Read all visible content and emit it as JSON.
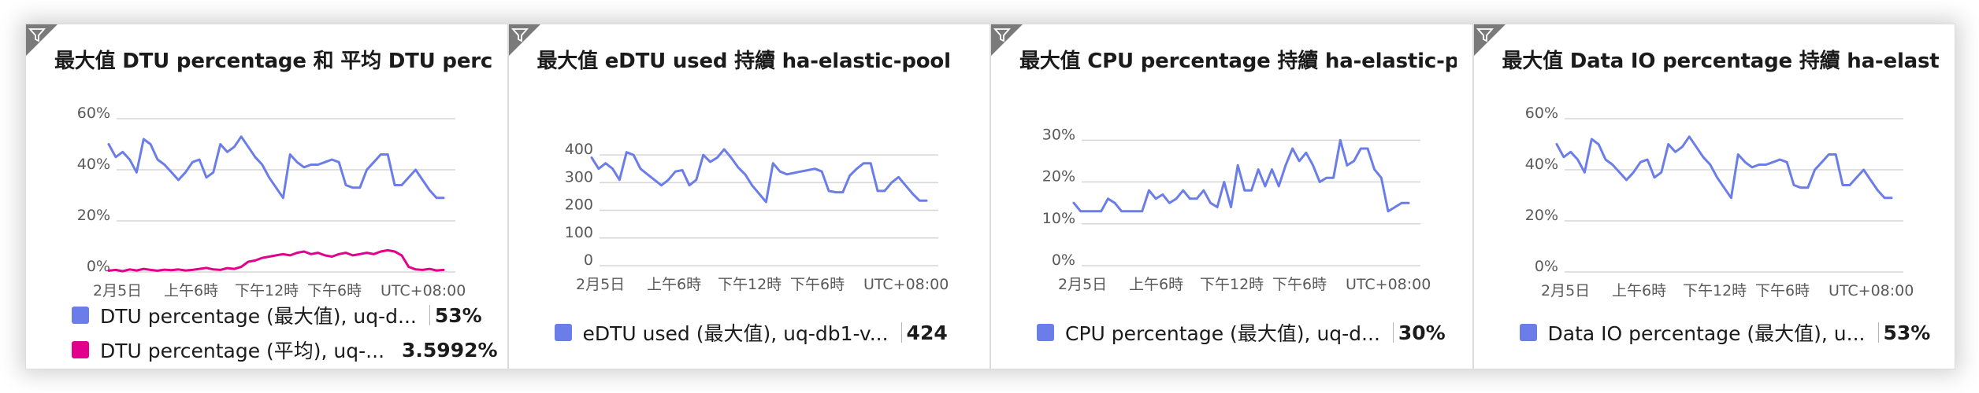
{
  "tiles": [
    {
      "title": "最大值 DTU percentage 和 平均 DTU percen...",
      "legend": [
        {
          "label": "DTU percentage (最大值), uq-d...",
          "value": "53%",
          "color": "#6b7de8"
        },
        {
          "label": "DTU percentage (平均), uq-...",
          "value": "3.5992%",
          "color": "#e3008c"
        }
      ]
    },
    {
      "title": "最大值 eDTU used 持續 ha-elastic-pool",
      "legend": [
        {
          "label": "eDTU used (最大值), uq-db1-v...",
          "value": "424",
          "color": "#6b7de8"
        }
      ]
    },
    {
      "title": "最大值 CPU percentage 持續 ha-elastic-pool",
      "legend": [
        {
          "label": "CPU percentage (最大值), uq-d...",
          "value": "30%",
          "color": "#6b7de8"
        }
      ]
    },
    {
      "title": "最大值 Data IO percentage 持續 ha-elastic-...",
      "legend": [
        {
          "label": "Data IO percentage (最大值), u...",
          "value": "53%",
          "color": "#6b7de8"
        }
      ]
    }
  ],
  "chart_data": [
    {
      "type": "line",
      "x_tick_labels": [
        "2月5日",
        "上午6時",
        "下午12時",
        "下午6時",
        "UTC+08:00"
      ],
      "y_tick_labels": [
        "0%",
        "20%",
        "40%",
        "60%"
      ],
      "ylim": [
        0,
        60
      ],
      "grid": true,
      "series": [
        {
          "name": "DTU percentage (最大值), uq-d...",
          "color": "#6b7de8",
          "values": [
            50,
            45,
            47,
            44,
            39,
            52,
            50,
            44,
            42,
            39,
            36,
            39,
            43,
            44,
            37,
            39,
            50,
            47,
            49,
            53,
            49,
            45,
            42,
            37,
            33,
            29,
            46,
            43,
            41,
            42,
            42,
            43,
            44,
            43,
            34,
            33,
            33,
            40,
            43,
            46,
            46,
            34,
            34,
            37,
            40,
            36,
            32,
            29,
            29
          ]
        },
        {
          "name": "DTU percentage (平均), uq-...",
          "color": "#e3008c",
          "values": [
            0.5,
            0.8,
            0.3,
            1.0,
            0.6,
            1.2,
            0.8,
            0.5,
            0.9,
            0.7,
            1.0,
            0.6,
            0.8,
            1.2,
            1.6,
            1.0,
            0.8,
            1.5,
            1.2,
            2.0,
            4.0,
            4.5,
            5.5,
            6.0,
            6.5,
            7.0,
            6.5,
            7.5,
            8.0,
            7.0,
            7.5,
            6.5,
            6.0,
            7.0,
            7.5,
            6.5,
            7.0,
            7.5,
            7.0,
            8.0,
            8.5,
            8.0,
            6.5,
            2.0,
            1.0,
            0.8,
            1.2,
            0.6,
            0.8
          ]
        }
      ]
    },
    {
      "type": "line",
      "x_tick_labels": [
        "2月5日",
        "上午6時",
        "下午12時",
        "下午6時",
        "UTC+08:00"
      ],
      "y_tick_labels": [
        "0",
        "100",
        "200",
        "300",
        "400"
      ],
      "ylim": [
        0,
        440
      ],
      "grid": true,
      "series": [
        {
          "name": "eDTU used (最大值), uq-db1-v...",
          "color": "#6b7de8",
          "values": [
            390,
            350,
            370,
            350,
            310,
            410,
            400,
            350,
            330,
            310,
            290,
            310,
            340,
            345,
            290,
            310,
            400,
            375,
            390,
            420,
            390,
            355,
            330,
            290,
            260,
            230,
            370,
            340,
            330,
            335,
            340,
            345,
            350,
            340,
            270,
            265,
            265,
            325,
            350,
            370,
            370,
            270,
            270,
            300,
            320,
            290,
            260,
            235,
            235
          ]
        }
      ]
    },
    {
      "type": "line",
      "x_tick_labels": [
        "2月5日",
        "上午6時",
        "下午12時",
        "下午6時",
        "UTC+08:00"
      ],
      "y_tick_labels": [
        "0%",
        "10%",
        "20%",
        "30%"
      ],
      "ylim": [
        0,
        31
      ],
      "grid": true,
      "series": [
        {
          "name": "CPU percentage (最大值), uq-d...",
          "color": "#6b7de8",
          "values": [
            15,
            13,
            13,
            13,
            13,
            16,
            15,
            13,
            13,
            13,
            13,
            18,
            16,
            17,
            15,
            16,
            18,
            16,
            16,
            18,
            15,
            14,
            20,
            14,
            24,
            18,
            18,
            23,
            19,
            23,
            19,
            24,
            28,
            25,
            27,
            24,
            20,
            21,
            21,
            30,
            24,
            25,
            28,
            28,
            23,
            21,
            13,
            14,
            15,
            15
          ]
        }
      ]
    },
    {
      "type": "line",
      "x_tick_labels": [
        "2月5日",
        "上午6時",
        "下午12時",
        "下午6時",
        "UTC+08:00"
      ],
      "y_tick_labels": [
        "0%",
        "20%",
        "40%",
        "60%"
      ],
      "ylim": [
        0,
        60
      ],
      "grid": true,
      "series": [
        {
          "name": "Data IO percentage (最大值), u...",
          "color": "#6b7de8",
          "values": [
            50,
            45,
            47,
            44,
            39,
            52,
            50,
            44,
            42,
            39,
            36,
            39,
            43,
            44,
            37,
            39,
            50,
            47,
            49,
            53,
            49,
            45,
            42,
            37,
            33,
            29,
            46,
            43,
            41,
            42,
            42,
            43,
            44,
            43,
            34,
            33,
            33,
            40,
            43,
            46,
            46,
            34,
            34,
            37,
            40,
            36,
            32,
            29,
            29
          ]
        }
      ]
    }
  ]
}
